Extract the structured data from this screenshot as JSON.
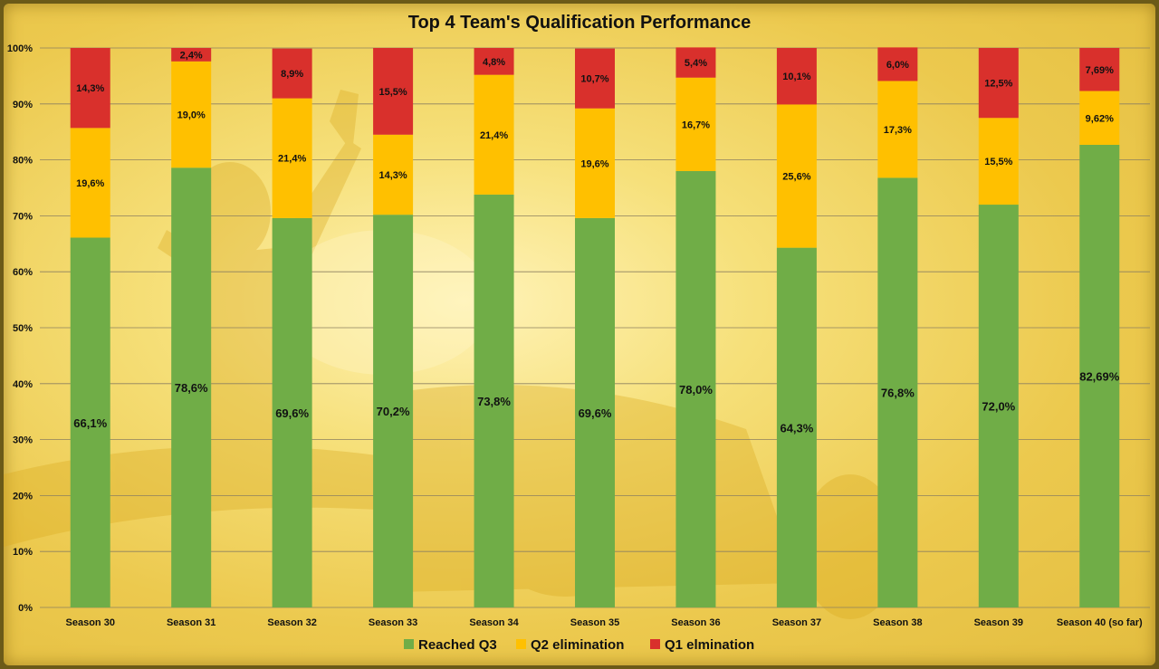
{
  "chart_data": {
    "type": "bar",
    "stacked": true,
    "title": "Top 4 Team's Qualification Performance",
    "categories": [
      "Season 30",
      "Season 31",
      "Season 32",
      "Season 33",
      "Season 34",
      "Season 35",
      "Season 36",
      "Season 37",
      "Season 38",
      "Season 39",
      "Season 40 (so far)"
    ],
    "ylim": [
      0,
      100
    ],
    "yticks": [
      "0%",
      "10%",
      "20%",
      "30%",
      "40%",
      "50%",
      "60%",
      "70%",
      "80%",
      "90%",
      "100%"
    ],
    "grid": true,
    "legend_position": "bottom",
    "series": [
      {
        "name": "Reached Q3",
        "color": "#70ad47",
        "values": [
          66.1,
          78.6,
          69.6,
          70.2,
          73.8,
          69.6,
          78.0,
          64.3,
          76.8,
          72.0,
          82.69
        ],
        "labels": [
          "66,1%",
          "78,6%",
          "69,6%",
          "70,2%",
          "73,8%",
          "69,6%",
          "78,0%",
          "64,3%",
          "76,8%",
          "72,0%",
          "82,69%"
        ]
      },
      {
        "name": "Q2 elimination",
        "color": "#ffc000",
        "values": [
          19.6,
          19.0,
          21.4,
          14.3,
          21.4,
          19.6,
          16.7,
          25.6,
          17.3,
          15.5,
          9.62
        ],
        "labels": [
          "19,6%",
          "19,0%",
          "21,4%",
          "14,3%",
          "21,4%",
          "19,6%",
          "16,7%",
          "25,6%",
          "17,3%",
          "15,5%",
          "9,62%"
        ]
      },
      {
        "name": "Q1 elmination",
        "color": "#d9302c",
        "values": [
          14.3,
          2.4,
          8.9,
          15.5,
          4.8,
          10.7,
          5.4,
          10.1,
          6.0,
          12.5,
          7.69
        ],
        "labels": [
          "14,3%",
          "2,4%",
          "8,9%",
          "15,5%",
          "4,8%",
          "10,7%",
          "5,4%",
          "10,1%",
          "6,0%",
          "12,5%",
          "7,69%"
        ]
      }
    ]
  }
}
